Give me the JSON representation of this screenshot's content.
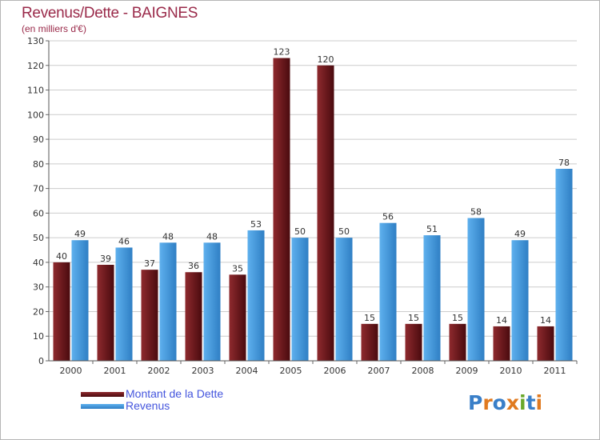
{
  "title": "Revenus/Dette - BAIGNES",
  "subtitle": "(en milliers d'€)",
  "colors": {
    "title": "#9a2a4a",
    "subtitle": "#9a2a4a",
    "legend_text": "#4455dd",
    "dette_light": "#8e2a2e",
    "dette_dark": "#4a0a0e",
    "revenus_light": "#5eb0ee",
    "revenus_dark": "#2f7fc4",
    "grid": "#cccccc",
    "axis_text": "#333333"
  },
  "legend": {
    "dette": "Montant de la Dette",
    "revenus": "Revenus"
  },
  "logo": {
    "letters": [
      "P",
      "r",
      "o",
      "x",
      "i",
      "t",
      "i"
    ],
    "colors": [
      "#3a7fc8",
      "#e07a20",
      "#3a7fc8",
      "#e07a20",
      "#6aa82a",
      "#3a7fc8",
      "#e07a20"
    ]
  },
  "chart_data": {
    "type": "bar",
    "categories": [
      "2000",
      "2001",
      "2002",
      "2003",
      "2004",
      "2005",
      "2006",
      "2007",
      "2008",
      "2009",
      "2010",
      "2011"
    ],
    "series": [
      {
        "name": "Montant de la Dette",
        "values": [
          40,
          39,
          37,
          36,
          35,
          123,
          120,
          15,
          15,
          15,
          14,
          14
        ]
      },
      {
        "name": "Revenus",
        "values": [
          49,
          46,
          48,
          48,
          53,
          50,
          50,
          56,
          51,
          58,
          49,
          78
        ]
      }
    ],
    "ylim": [
      0,
      130
    ],
    "yticks": [
      0,
      10,
      20,
      30,
      40,
      50,
      60,
      70,
      80,
      90,
      100,
      110,
      120,
      130
    ],
    "grid": true
  }
}
